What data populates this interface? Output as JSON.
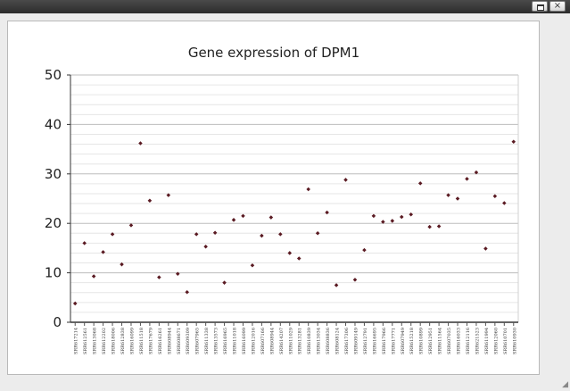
{
  "window": {
    "restore_icon": "restore-icon",
    "close_icon": "close-icon"
  },
  "chart_data": {
    "type": "scatter",
    "title": "Gene expression of DPM1",
    "xlabel": "",
    "ylabel": "",
    "ylim": [
      0,
      50
    ],
    "yticks": [
      0,
      10,
      20,
      30,
      40,
      50
    ],
    "grid": true,
    "marker_color": "#5a1a22",
    "categories": [
      "SRR617214",
      "SRR612561",
      "SRR613068",
      "SRR612202",
      "SRR618006",
      "SRR612838",
      "SRR616099",
      "SRR611518",
      "SRR617679",
      "SRR616261",
      "SRR608944",
      "SRR608671",
      "SRR609309",
      "SRR607965",
      "SRR611338",
      "SRR613573",
      "SRR616965",
      "SRR611018",
      "SRR616099",
      "SRR612016",
      "SRR607166",
      "SRR608944",
      "SRR614207",
      "SRR611029",
      "SRR613281",
      "SRR610839",
      "SRR613034",
      "SRR608836",
      "SRR608124",
      "SRR617306",
      "SRR609149",
      "SRR612791",
      "SRR616695",
      "SRR617966",
      "SRR617771",
      "SRR607949",
      "SRR615218",
      "SRR610899",
      "SRR612951",
      "SRR611564",
      "SRR607035",
      "SRR616033",
      "SRR612116",
      "SRR621523",
      "SRR611994",
      "SRR612060",
      "SRR610701",
      "SRR610930"
    ],
    "values": [
      3.8,
      16.0,
      9.3,
      14.2,
      17.8,
      11.7,
      19.6,
      36.2,
      24.6,
      9.1,
      25.7,
      9.8,
      6.1,
      17.8,
      15.3,
      18.1,
      8.0,
      20.7,
      21.5,
      11.5,
      17.5,
      21.2,
      17.8,
      14.0,
      12.9,
      26.9,
      18.0,
      22.2,
      7.5,
      28.8,
      8.6,
      14.6,
      21.5,
      20.3,
      20.5,
      21.3,
      21.8,
      28.1,
      19.3,
      19.4,
      25.7,
      25.0,
      29.0,
      30.3,
      14.9,
      25.5,
      24.1,
      36.5
    ]
  }
}
